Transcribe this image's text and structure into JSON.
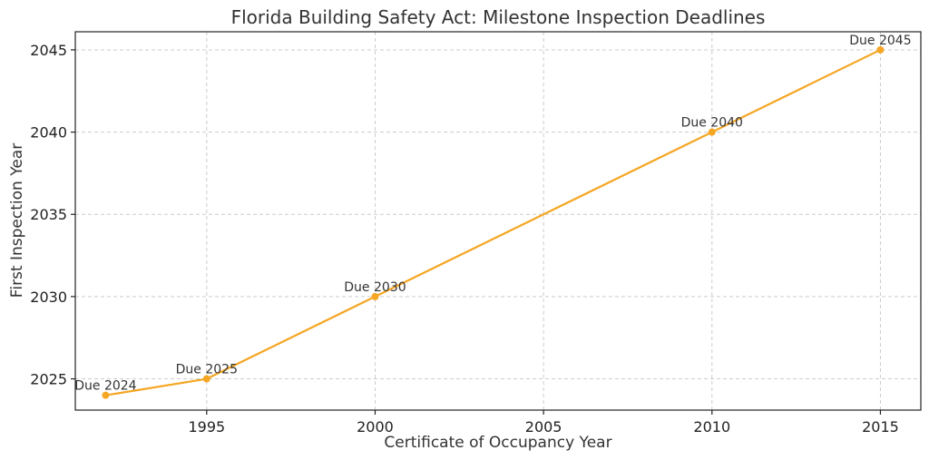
{
  "chart_data": {
    "type": "line",
    "title": "Florida Building Safety Act: Milestone Inspection Deadlines",
    "xlabel": "Certificate of Occupancy Year",
    "ylabel": "First Inspection Year",
    "xlim": [
      1991.1,
      2016.2
    ],
    "ylim": [
      2023.1,
      2046.1
    ],
    "xticks": [
      1995,
      2000,
      2005,
      2010,
      2015
    ],
    "yticks": [
      2025,
      2030,
      2035,
      2040,
      2045
    ],
    "grid": true,
    "series": [
      {
        "color": "#f5a623",
        "x": [
          1992,
          1995,
          2000,
          2010,
          2015
        ],
        "y": [
          2024,
          2025,
          2030,
          2040,
          2045
        ],
        "labels": [
          "Due 2024",
          "Due 2025",
          "Due 2030",
          "Due 2040",
          "Due 2045"
        ]
      }
    ]
  }
}
